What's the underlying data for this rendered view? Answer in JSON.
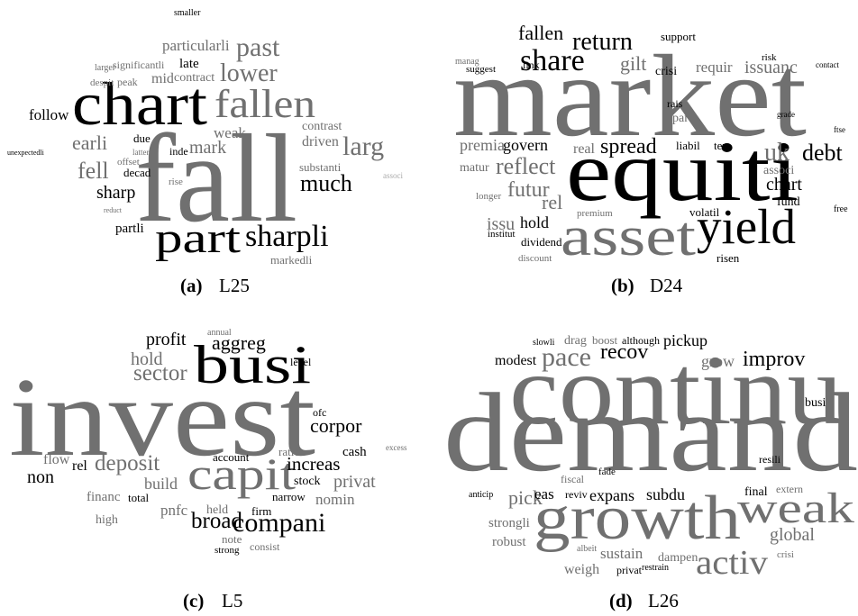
{
  "panels": [
    {
      "tag": "(a)",
      "label": "L25",
      "words": [
        "fall",
        "chart",
        "fallen",
        "past",
        "lower",
        "part",
        "sharpli",
        "larg",
        "much",
        "follow",
        "earli",
        "fell",
        "sharp",
        "partli",
        "markedli",
        "particularli",
        "late",
        "contract",
        "mid",
        "significantli",
        "larger",
        "peak",
        "despit",
        "due",
        "decad",
        "offset",
        "weak",
        "mark",
        "inde",
        "driven",
        "contrast",
        "substanti",
        "rise",
        "smaller",
        "unexpectedli",
        "associ",
        "reduct",
        "latter"
      ]
    },
    {
      "tag": "(b)",
      "label": "D24",
      "words": [
        "market",
        "equiti",
        "asset",
        "yield",
        "share",
        "return",
        "fallen",
        "gilt",
        "crisi",
        "support",
        "requir",
        "issuanc",
        "risk",
        "spread",
        "reflect",
        "futur",
        "rel",
        "premia",
        "govern",
        "matur",
        "real",
        "hold",
        "issu",
        "dividend",
        "discount",
        "uk",
        "debt",
        "chart",
        "fund",
        "associ",
        "volatil",
        "liabil",
        "ten",
        "risen",
        "part",
        "rais",
        "free",
        "link",
        "suggest",
        "manag",
        "institut",
        "longer",
        "premium",
        "contact",
        "grade",
        "ftse"
      ]
    },
    {
      "tag": "(c)",
      "label": "L5",
      "words": [
        "invest",
        "busi",
        "capit",
        "compani",
        "broad",
        "increas",
        "corpor",
        "privat",
        "nomin",
        "deposit",
        "build",
        "non",
        "rel",
        "flow",
        "sector",
        "hold",
        "profit",
        "aggreg",
        "account",
        "ratio",
        "cash",
        "stock",
        "narrow",
        "firm",
        "held",
        "note",
        "consist",
        "strong",
        "pnfc",
        "total",
        "financ",
        "high",
        "ofc",
        "level",
        "annual",
        "excess"
      ]
    },
    {
      "tag": "(d)",
      "label": "L26",
      "words": [
        "continu",
        "demand",
        "growth",
        "weak",
        "activ",
        "pace",
        "recov",
        "improv",
        "pickup",
        "grow",
        "modest",
        "drag",
        "boost",
        "although",
        "busi",
        "pick",
        "eas",
        "expans",
        "subdu",
        "reviv",
        "strongli",
        "robust",
        "sustain",
        "weigh",
        "privat",
        "dampen",
        "global",
        "final",
        "extern",
        "resili",
        "crisi",
        "fiscal",
        "fade",
        "anticip",
        "albeit",
        "restrain",
        "slowli"
      ]
    }
  ]
}
